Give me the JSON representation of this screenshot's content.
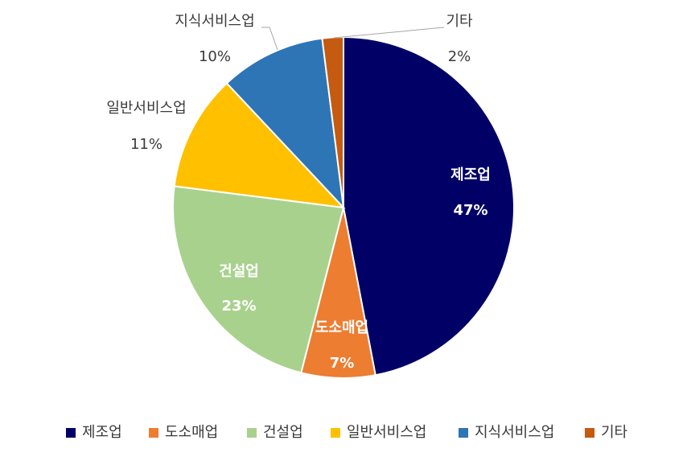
{
  "chart_data": {
    "type": "pie",
    "title": "",
    "categories": [
      "제조업",
      "도소매업",
      "건설업",
      "일반서비스업",
      "지식서비스업",
      "기타"
    ],
    "values": [
      47,
      7,
      23,
      11,
      10,
      2
    ],
    "labels": [
      "47%",
      "7%",
      "23%",
      "11%",
      "10%",
      "2%"
    ],
    "colors": [
      "#000066",
      "#ED7D31",
      "#A9D18E",
      "#FFC000",
      "#2E75B6",
      "#C55A11"
    ],
    "label_positions": [
      "inside",
      "inside",
      "inside",
      "outside",
      "outside",
      "outside"
    ],
    "label_colors": [
      "#ffffff",
      "#ffffff",
      "#ffffff",
      "#3a3a3a",
      "#3a3a3a",
      "#3a3a3a"
    ],
    "legend": {
      "position": "bottom",
      "entries": [
        "제조업",
        "도소매업",
        "건설업",
        "일반서비스업",
        "지식서비스업",
        "기타"
      ]
    }
  }
}
